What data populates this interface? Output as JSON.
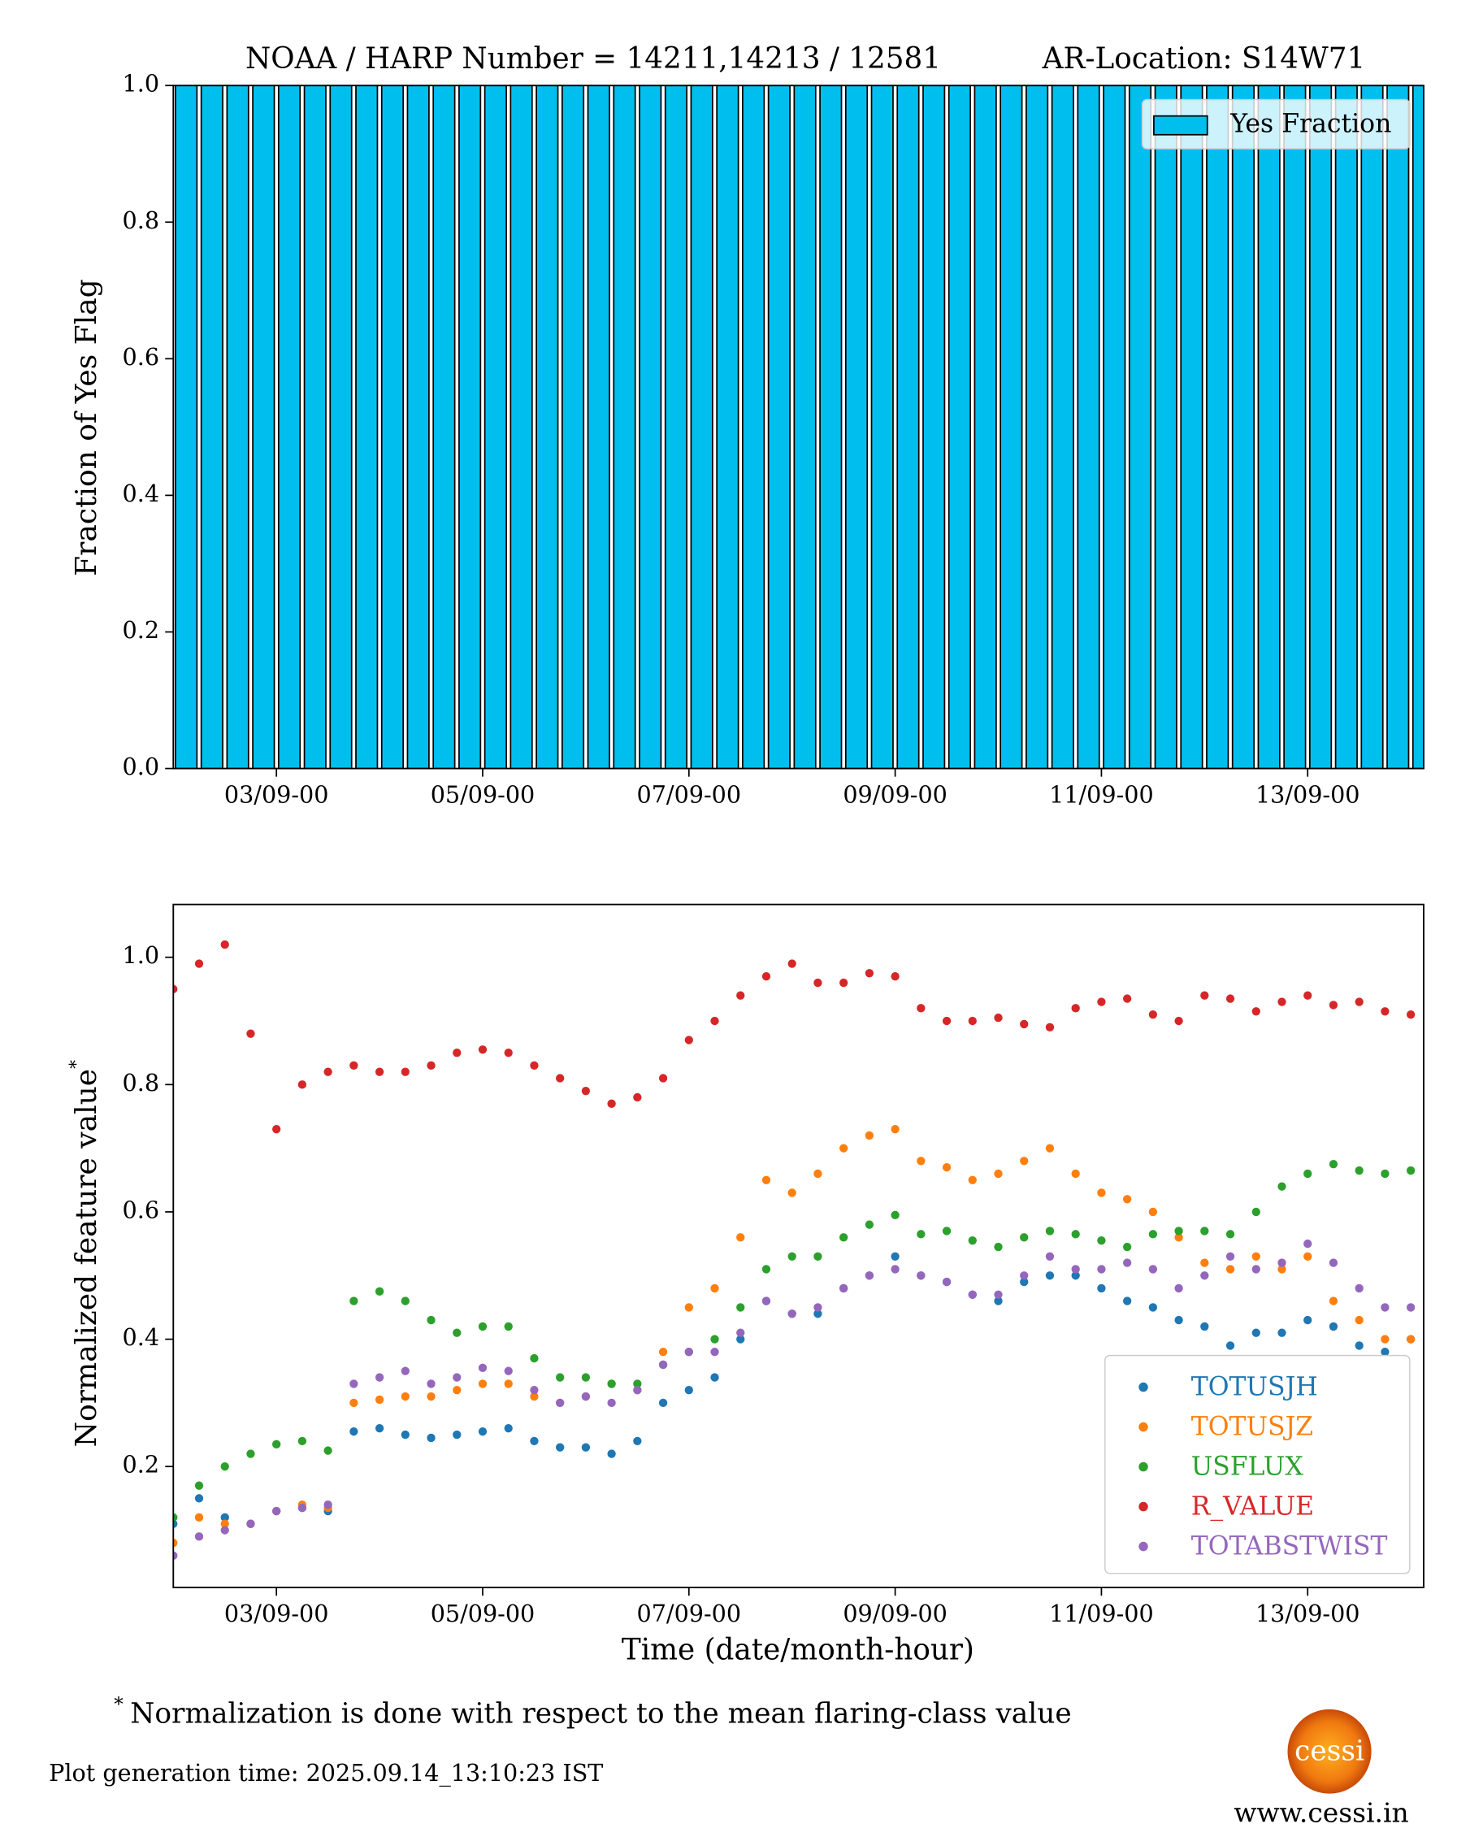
{
  "chart_data": [
    {
      "type": "bar",
      "title": "NOAA / HARP Number = 14211,14213 / 12581",
      "subtitle": "AR-Location: S14W71",
      "ylabel": "Fraction of Yes Flag",
      "x": [
        "02/09-00",
        "02/09-06",
        "02/09-12",
        "02/09-18",
        "03/09-00",
        "03/09-06",
        "03/09-12",
        "03/09-18",
        "04/09-00",
        "04/09-06",
        "04/09-12",
        "04/09-18",
        "05/09-00",
        "05/09-06",
        "05/09-12",
        "05/09-18",
        "06/09-00",
        "06/09-06",
        "06/09-12",
        "06/09-18",
        "07/09-00",
        "07/09-06",
        "07/09-12",
        "07/09-18",
        "08/09-00",
        "08/09-06",
        "08/09-12",
        "08/09-18",
        "09/09-00",
        "09/09-06",
        "09/09-12",
        "09/09-18",
        "10/09-00",
        "10/09-06",
        "10/09-12",
        "10/09-18",
        "11/09-00",
        "11/09-06",
        "11/09-12",
        "11/09-18",
        "12/09-00",
        "12/09-06",
        "12/09-12",
        "12/09-18",
        "13/09-00",
        "13/09-06",
        "13/09-12",
        "13/09-18",
        "14/09-00"
      ],
      "series": [
        {
          "name": "Yes Fraction",
          "color": "#00bfef",
          "values": [
            1,
            1,
            1,
            1,
            1,
            1,
            1,
            1,
            1,
            1,
            1,
            1,
            1,
            1,
            1,
            1,
            1,
            1,
            1,
            1,
            1,
            1,
            1,
            1,
            1,
            1,
            1,
            1,
            1,
            1,
            1,
            1,
            1,
            1,
            1,
            1,
            1,
            1,
            1,
            1,
            1,
            1,
            1,
            1,
            1,
            1,
            1,
            1,
            1
          ]
        }
      ],
      "xlim": [
        "02/09-00",
        "14/09-03"
      ],
      "xticks": [
        "03/09-00",
        "05/09-00",
        "07/09-00",
        "09/09-00",
        "11/09-00",
        "13/09-00"
      ],
      "ylim": [
        0,
        1
      ],
      "yticks": [
        {
          "value": 0,
          "label": "0.0"
        },
        0.2,
        0.4,
        0.6,
        0.8,
        {
          "value": 1,
          "label": "1.0"
        }
      ],
      "legend": "upper right"
    },
    {
      "type": "scatter",
      "ylabel": "Normalized feature value",
      "ylabel_marker": "*",
      "xlabel": "Time (date/month-hour)",
      "x": [
        "02/09-00",
        "02/09-06",
        "02/09-12",
        "02/09-18",
        "03/09-00",
        "03/09-06",
        "03/09-12",
        "03/09-18",
        "04/09-00",
        "04/09-06",
        "04/09-12",
        "04/09-18",
        "05/09-00",
        "05/09-06",
        "05/09-12",
        "05/09-18",
        "06/09-00",
        "06/09-06",
        "06/09-12",
        "06/09-18",
        "07/09-00",
        "07/09-06",
        "07/09-12",
        "07/09-18",
        "08/09-00",
        "08/09-06",
        "08/09-12",
        "08/09-18",
        "09/09-00",
        "09/09-06",
        "09/09-12",
        "09/09-18",
        "10/09-00",
        "10/09-06",
        "10/09-12",
        "10/09-18",
        "11/09-00",
        "11/09-06",
        "11/09-12",
        "11/09-18",
        "12/09-00",
        "12/09-06",
        "12/09-12",
        "12/09-18",
        "13/09-00",
        "13/09-06",
        "13/09-12",
        "13/09-18",
        "14/09-00"
      ],
      "series": [
        {
          "name": "TOTUSJH",
          "color": "#1f77b4",
          "values": [
            0.11,
            0.15,
            0.12,
            0.11,
            0.13,
            0.135,
            0.13,
            0.255,
            0.26,
            0.25,
            0.245,
            0.25,
            0.255,
            0.26,
            0.24,
            0.23,
            0.23,
            0.22,
            0.24,
            0.3,
            0.32,
            0.34,
            0.4,
            0.46,
            0.44,
            0.44,
            0.48,
            0.5,
            0.53,
            0.5,
            0.49,
            0.47,
            0.46,
            0.49,
            0.5,
            0.5,
            0.48,
            0.46,
            0.45,
            0.43,
            0.42,
            0.39,
            0.41,
            0.41,
            0.43,
            0.42,
            0.39,
            0.38,
            0.4
          ]
        },
        {
          "name": "TOTUSJZ",
          "color": "#ff7f0e",
          "values": [
            0.08,
            0.12,
            0.11,
            0.11,
            0.13,
            0.14,
            0.135,
            0.3,
            0.305,
            0.31,
            0.31,
            0.32,
            0.33,
            0.33,
            0.31,
            0.3,
            0.31,
            0.33,
            0.32,
            0.38,
            0.45,
            0.48,
            0.56,
            0.65,
            0.63,
            0.66,
            0.7,
            0.72,
            0.73,
            0.68,
            0.67,
            0.65,
            0.66,
            0.68,
            0.7,
            0.66,
            0.63,
            0.62,
            0.6,
            0.56,
            0.52,
            0.51,
            0.53,
            0.51,
            0.53,
            0.46,
            0.43,
            0.4,
            0.4
          ]
        },
        {
          "name": "USFLUX",
          "color": "#2ca02c",
          "values": [
            0.12,
            0.17,
            0.2,
            0.22,
            0.235,
            0.24,
            0.225,
            0.46,
            0.475,
            0.46,
            0.43,
            0.41,
            0.42,
            0.42,
            0.37,
            0.34,
            0.34,
            0.33,
            0.33,
            0.36,
            0.38,
            0.4,
            0.45,
            0.51,
            0.53,
            0.53,
            0.56,
            0.58,
            0.595,
            0.565,
            0.57,
            0.555,
            0.545,
            0.56,
            0.57,
            0.565,
            0.555,
            0.545,
            0.565,
            0.57,
            0.57,
            0.565,
            0.6,
            0.64,
            0.66,
            0.675,
            0.665,
            0.66,
            0.665
          ]
        },
        {
          "name": "R_VALUE",
          "color": "#d62728",
          "values": [
            0.95,
            0.99,
            1.02,
            0.88,
            0.73,
            0.8,
            0.82,
            0.83,
            0.82,
            0.82,
            0.83,
            0.85,
            0.855,
            0.85,
            0.83,
            0.81,
            0.79,
            0.77,
            0.78,
            0.81,
            0.87,
            0.9,
            0.94,
            0.97,
            0.99,
            0.96,
            0.96,
            0.975,
            0.97,
            0.92,
            0.9,
            0.9,
            0.905,
            0.895,
            0.89,
            0.92,
            0.93,
            0.935,
            0.91,
            0.9,
            0.94,
            0.935,
            0.915,
            0.93,
            0.94,
            0.925,
            0.93,
            0.915,
            0.91
          ]
        },
        {
          "name": "TOTABSTWIST",
          "color": "#9467bd",
          "values": [
            0.06,
            0.09,
            0.1,
            0.11,
            0.13,
            0.135,
            0.14,
            0.33,
            0.34,
            0.35,
            0.33,
            0.34,
            0.355,
            0.35,
            0.32,
            0.3,
            0.31,
            0.3,
            0.32,
            0.36,
            0.38,
            0.38,
            0.41,
            0.46,
            0.44,
            0.45,
            0.48,
            0.5,
            0.51,
            0.5,
            0.49,
            0.47,
            0.47,
            0.5,
            0.53,
            0.51,
            0.51,
            0.52,
            0.51,
            0.48,
            0.5,
            0.53,
            0.51,
            0.52,
            0.55,
            0.52,
            0.48,
            0.45,
            0.45
          ]
        }
      ],
      "xlim": [
        "02/09-00",
        "14/09-03"
      ],
      "xticks": [
        "03/09-00",
        "05/09-00",
        "07/09-00",
        "09/09-00",
        "11/09-00",
        "13/09-00"
      ],
      "ylim": [
        0.01,
        1.083
      ],
      "yticks": [
        0.2,
        0.4,
        0.6,
        0.8,
        {
          "value": 1,
          "label": "1.0"
        }
      ],
      "legend": "lower right"
    }
  ],
  "footnote_marker": "*",
  "footnote": "Normalization is done with respect to the mean flaring-class value",
  "generation_time": "Plot generation time: 2025.09.14_13:10:23 IST",
  "logo_text": "cessi",
  "website": "www.cessi.in"
}
